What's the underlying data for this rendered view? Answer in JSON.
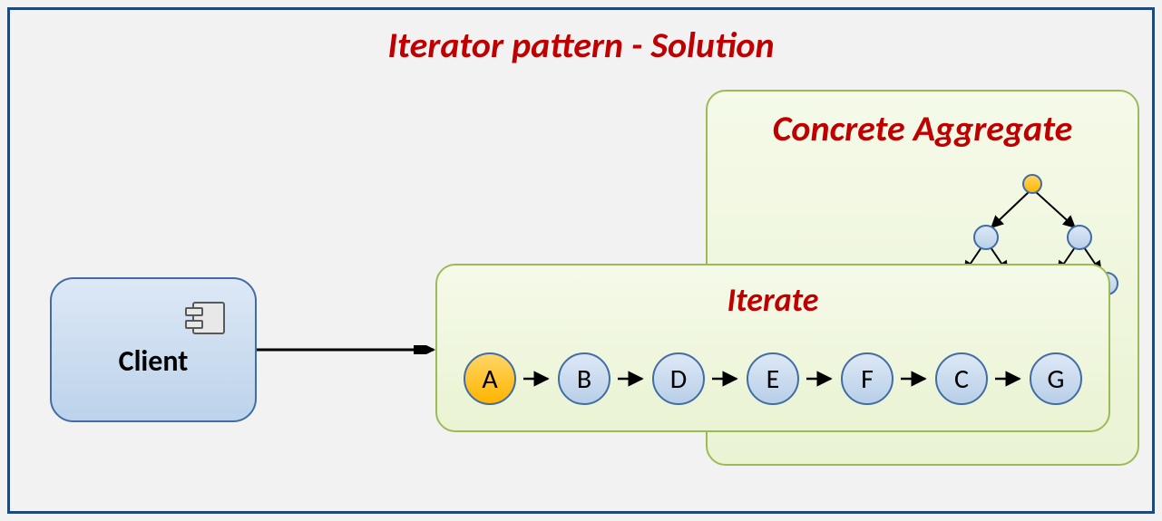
{
  "title": "Iterator pattern - Solution",
  "client": {
    "label": "Client"
  },
  "aggregate": {
    "title": "Concrete Aggregate"
  },
  "iterate": {
    "title": "Iterate",
    "nodes": [
      {
        "label": "A",
        "highlight": true
      },
      {
        "label": "B",
        "highlight": false
      },
      {
        "label": "D",
        "highlight": false
      },
      {
        "label": "E",
        "highlight": false
      },
      {
        "label": "F",
        "highlight": false
      },
      {
        "label": "C",
        "highlight": false
      },
      {
        "label": "G",
        "highlight": false
      }
    ]
  },
  "colors": {
    "title_color": "#c00000",
    "frame_border": "#1f497d",
    "green_border": "#9bbb59",
    "node_fill_top": "#dde8f6",
    "node_fill_bottom": "#b8cfe8",
    "node_border": "#426ca5",
    "highlight_top": "#ffd666",
    "highlight_bottom": "#ffb400",
    "arrow_color": "#000000",
    "background": "#f2f2f2"
  },
  "tree": {
    "root_highlight": true,
    "node_radius_small": 11,
    "node_radius_root": 10,
    "structure": "binary-tree-3-levels"
  }
}
